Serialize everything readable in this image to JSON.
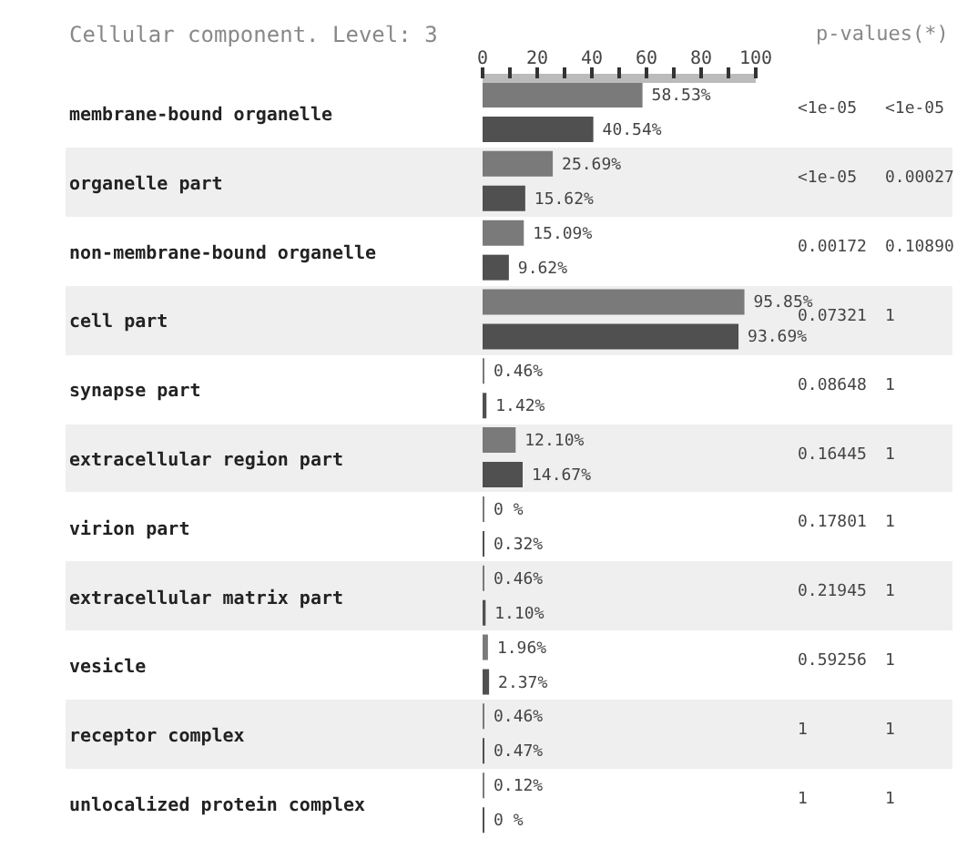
{
  "chart_data": {
    "type": "bar",
    "orientation": "horizontal",
    "title": "Cellular component. Level: 3",
    "categories": [
      "membrane-bound organelle",
      "organelle part",
      "non-membrane-bound organelle",
      "cell part",
      "synapse part",
      "extracellular region part",
      "virion part",
      "extracellular matrix part",
      "vesicle",
      "receptor complex",
      "unlocalized protein complex"
    ],
    "series": [
      {
        "color": "#7a7a7a",
        "values": [
          58.53,
          25.69,
          15.09,
          95.85,
          0.46,
          12.1,
          0,
          0.46,
          1.96,
          0.46,
          0.12
        ],
        "value_labels": [
          "58.53%",
          "25.69%",
          "15.09%",
          "95.85%",
          "0.46%",
          "12.10%",
          "0 %",
          "0.46%",
          "1.96%",
          "0.46%",
          "0.12%"
        ]
      },
      {
        "color": "#505050",
        "values": [
          40.54,
          15.62,
          9.62,
          93.69,
          1.42,
          14.67,
          0.32,
          1.1,
          2.37,
          0.47,
          0
        ],
        "value_labels": [
          "40.54%",
          "15.62%",
          "9.62%",
          "93.69%",
          "1.42%",
          "14.67%",
          "0.32%",
          "1.10%",
          "2.37%",
          "0.47%",
          "0 %"
        ]
      }
    ],
    "xlim": [
      0,
      100
    ],
    "xticks": [
      0,
      {
        "value": 10,
        "label": null
      },
      20,
      {
        "value": 30,
        "label": null
      },
      40,
      {
        "value": 50,
        "label": null
      },
      60,
      {
        "value": 70,
        "label": null
      },
      80,
      {
        "value": 90,
        "label": null
      },
      100
    ],
    "grid": false,
    "legend": false,
    "annotations": [
      "p-values(*)",
      "<1e-05",
      "<1e-05",
      "<1e-05",
      "0.00027",
      "0.00172",
      "0.10890",
      "0.07321",
      "1",
      "0.08648",
      "1",
      "0.16445",
      "1",
      "0.17801",
      "1",
      "0.21945",
      "1",
      "0.59256",
      "1",
      "1",
      "1",
      "1",
      "1"
    ]
  }
}
